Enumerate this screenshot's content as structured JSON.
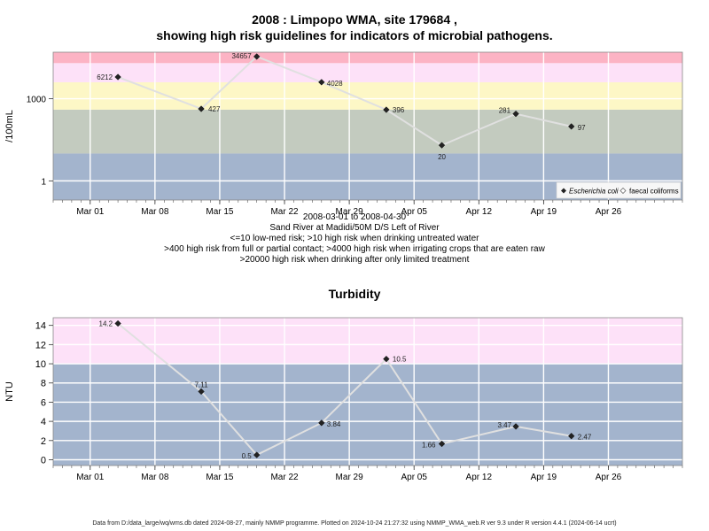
{
  "title_line1": "2008 : Limpopo WMA, site 179684 ,",
  "title_line2": "showing high risk guidelines for indicators of microbial pathogens.",
  "subtitle_lines": [
    "2008-03-01 to 2008-04-30",
    "Sand River at Madidi/50M D/S Left of River",
    "<=10 low-med risk; >10 high risk when drinking untreated water",
    ">400 high risk from full or partial contact; >4000 high risk when irrigating crops that are eaten raw",
    ">20000 high risk when drinking after only limited treatment"
  ],
  "turbidity_title": "Turbidity",
  "footer": "Data from D:/data_large/wq/wms.db dated 2024-08-27, mainly NMMP programme. Plotted on 2024-10-24 21:27:32 using NMMP_WMA_web.R ver 9.3 under R version 4.4.1 (2024-06-14 ucrt)",
  "colors": {
    "band_blue": "#a3b4cd",
    "band_green": "#c3cbbf",
    "band_yellow": "#fdf7c6",
    "band_pink": "#fde1f8",
    "band_red": "#fcb3c4",
    "line": "#e0e0e0",
    "point": "#222222"
  },
  "chart_data": [
    {
      "type": "line",
      "ylabel": "/100mL",
      "log_scale": true,
      "x_tick_labels": [
        "Mar 01",
        "Mar 08",
        "Mar 15",
        "Mar 22",
        "Mar 29",
        "Apr 05",
        "Apr 12",
        "Apr 19",
        "Apr 26"
      ],
      "x_ticks": [
        "2008-03-01",
        "2008-03-08",
        "2008-03-15",
        "2008-03-22",
        "2008-03-29",
        "2008-04-05",
        "2008-04-12",
        "2008-04-19",
        "2008-04-26"
      ],
      "y_tick_labels": [
        "1",
        "1000"
      ],
      "y_ticks": [
        1,
        1000
      ],
      "ylim": [
        0.2,
        50000
      ],
      "xlim": [
        "2008-02-26",
        "2008-05-04"
      ],
      "risk_bands": [
        10,
        400,
        4000,
        20000
      ],
      "legend": [
        "Escherichia coli",
        "faecal coliforms"
      ],
      "legend_position": "bottom-right",
      "series": [
        {
          "name": "Escherichia coli",
          "x": [
            "2008-03-04",
            "2008-03-13",
            "2008-03-19",
            "2008-03-26",
            "2008-04-02",
            "2008-04-08",
            "2008-04-16",
            "2008-04-22"
          ],
          "values": [
            6212,
            427,
            34657,
            4028,
            396,
            20,
            281,
            97
          ],
          "labels": [
            "6212",
            "427",
            "34657",
            "4028",
            "396",
            "20",
            "281",
            "97"
          ]
        }
      ]
    },
    {
      "type": "line",
      "title": "Turbidity",
      "ylabel": "NTU",
      "x_tick_labels": [
        "Mar 01",
        "Mar 08",
        "Mar 15",
        "Mar 22",
        "Mar 29",
        "Apr 05",
        "Apr 12",
        "Apr 19",
        "Apr 26"
      ],
      "x_ticks": [
        "2008-03-01",
        "2008-03-08",
        "2008-03-15",
        "2008-03-22",
        "2008-03-29",
        "2008-04-05",
        "2008-04-12",
        "2008-04-19",
        "2008-04-26"
      ],
      "y_tick_labels": [
        "0",
        "2",
        "4",
        "6",
        "8",
        "10",
        "12",
        "14"
      ],
      "y_ticks": [
        0,
        2,
        4,
        6,
        8,
        10,
        12,
        14
      ],
      "ylim": [
        -0.6,
        14.8
      ],
      "xlim": [
        "2008-02-26",
        "2008-05-04"
      ],
      "risk_bands": [
        10
      ],
      "series": [
        {
          "name": "Turbidity",
          "x": [
            "2008-03-04",
            "2008-03-13",
            "2008-03-19",
            "2008-03-26",
            "2008-04-02",
            "2008-04-08",
            "2008-04-16",
            "2008-04-22"
          ],
          "values": [
            14.2,
            7.11,
            0.5,
            3.84,
            10.5,
            1.66,
            3.47,
            2.47
          ],
          "labels": [
            "14.2",
            "7.11",
            "0.5",
            "3.84",
            "10.5",
            "1.66",
            "3.47",
            "2.47"
          ]
        }
      ]
    }
  ]
}
